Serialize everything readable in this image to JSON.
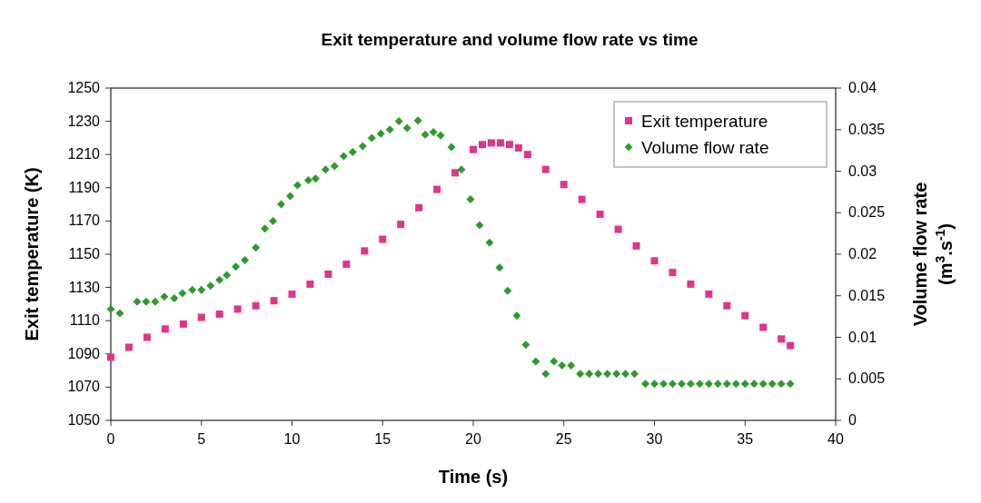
{
  "chart_data": {
    "type": "scatter",
    "title": "Exit temperature and volume flow rate vs time",
    "xlabel": "Time (s)",
    "ylabel": "Exit temperature (K)",
    "y2label": "Volume flow rate (m$^{3}$.s$^{-1}$)",
    "xlim": [
      0,
      40
    ],
    "xticks": [
      0,
      5,
      10,
      15,
      20,
      25,
      30,
      35,
      40
    ],
    "ylim": [
      1050,
      1250
    ],
    "yticks": [
      1050,
      1070,
      1090,
      1110,
      1130,
      1150,
      1170,
      1190,
      1210,
      1230,
      1250
    ],
    "y2lim": [
      0,
      0.04
    ],
    "y2ticks": [
      0,
      0.005,
      0.01,
      0.015,
      0.02,
      0.025,
      0.03,
      0.035,
      0.04
    ],
    "grid": false,
    "legend": "top right",
    "series": [
      {
        "name": "Exit temperature",
        "color": "#e0348c",
        "marker": "square",
        "x": [
          0,
          1,
          2,
          3,
          4,
          5,
          6,
          7,
          8,
          9,
          10,
          11,
          12,
          13,
          14,
          15,
          16,
          17,
          18,
          19,
          20,
          20.5,
          21,
          21.5,
          22,
          22.5,
          23,
          24,
          25,
          26,
          27,
          28,
          29,
          30,
          31,
          32,
          33,
          34,
          35,
          36,
          37,
          37.5
        ],
        "values": [
          1088,
          1094,
          1100,
          1105,
          1108,
          1112,
          1114,
          1117,
          1119,
          1122,
          1126,
          1132,
          1138,
          1144,
          1152,
          1159,
          1168,
          1178,
          1189,
          1199,
          1213,
          1216,
          1217,
          1217,
          1216,
          1214,
          1210,
          1201,
          1192,
          1183,
          1174,
          1165,
          1155,
          1146,
          1139,
          1132,
          1126,
          1119,
          1113,
          1106,
          1099,
          1095
        ]
      },
      {
        "name": "Volume flow rate",
        "color": "#2e9a2e",
        "marker": "diamond",
        "x": [
          0,
          0.5,
          1.45,
          1.95,
          2.45,
          2.95,
          3.5,
          3.95,
          4.5,
          5,
          5.5,
          6,
          6.4,
          6.9,
          7.4,
          8,
          8.5,
          8.95,
          9.4,
          9.9,
          10.3,
          10.9,
          11.3,
          11.85,
          12.35,
          12.85,
          13.35,
          13.9,
          14.4,
          14.9,
          15.4,
          15.9,
          16.35,
          16.95,
          17.35,
          17.8,
          18.2,
          18.8,
          19.35,
          19.85,
          20.35,
          20.9,
          21.45,
          21.9,
          22.4,
          22.9,
          23.45,
          24,
          24.45,
          24.9,
          25.4,
          25.9,
          26.4,
          26.9,
          27.4,
          27.9,
          28.4,
          28.9,
          29.5,
          30,
          30.5,
          31,
          31.5,
          32,
          32.5,
          33,
          33.5,
          34,
          34.5,
          35,
          35.5,
          36,
          36.5,
          37,
          37.5
        ],
        "values": [
          0.0134,
          0.0129,
          0.0143,
          0.0143,
          0.0143,
          0.0149,
          0.0147,
          0.0153,
          0.0157,
          0.0157,
          0.0162,
          0.0169,
          0.0175,
          0.0185,
          0.0193,
          0.0208,
          0.0231,
          0.024,
          0.026,
          0.027,
          0.0283,
          0.0289,
          0.0291,
          0.0302,
          0.0306,
          0.0318,
          0.0323,
          0.033,
          0.034,
          0.0345,
          0.035,
          0.036,
          0.0352,
          0.0361,
          0.0344,
          0.0347,
          0.0343,
          0.0329,
          0.0302,
          0.0266,
          0.0235,
          0.0214,
          0.0184,
          0.0156,
          0.0126,
          0.0091,
          0.0071,
          0.0056,
          0.0071,
          0.0066,
          0.0066,
          0.0056,
          0.0056,
          0.0056,
          0.0056,
          0.0056,
          0.0056,
          0.0056,
          0.0044,
          0.0044,
          0.0044,
          0.0044,
          0.0044,
          0.0044,
          0.0044,
          0.0044,
          0.0044,
          0.0044,
          0.0044,
          0.0044,
          0.0044,
          0.0044,
          0.0044,
          0.0044,
          0.0044
        ],
        "axis": "y2"
      }
    ]
  }
}
